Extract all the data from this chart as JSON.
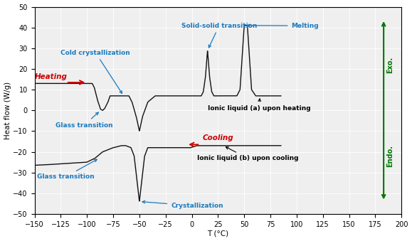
{
  "xlim": [
    -150,
    200
  ],
  "ylim": [
    -50,
    50
  ],
  "xticks": [
    -150,
    -125,
    -100,
    -75,
    -50,
    -25,
    0,
    25,
    50,
    75,
    100,
    125,
    150,
    175,
    200
  ],
  "yticks": [
    -50,
    -40,
    -30,
    -20,
    -10,
    0,
    10,
    20,
    30,
    40,
    50
  ],
  "xlabel": "T (°C)",
  "ylabel": "Heat flow (W/g)",
  "curve_color": "#111111",
  "blue": "#1a7abf",
  "red": "#cc0000",
  "green": "#007700",
  "bg_color": "#efefef",
  "heating_curve_x": [
    -150,
    -95,
    -93,
    -90,
    -87,
    -85,
    -83,
    -80,
    -78,
    -60,
    -57,
    -53,
    -50,
    -47,
    -42,
    -35,
    9,
    11,
    13,
    15,
    17,
    19,
    21,
    43,
    46,
    50,
    53,
    57,
    61,
    64,
    85
  ],
  "heating_curve_y": [
    13,
    13,
    11,
    5,
    0.5,
    0,
    1,
    4,
    7,
    7,
    4,
    -3,
    -10,
    -3,
    4,
    7,
    7,
    9,
    16,
    29,
    16,
    9,
    7,
    7,
    10,
    41,
    41,
    10,
    7,
    7,
    7
  ],
  "cooling_curve_x": [
    85,
    5,
    2,
    -1,
    -42,
    -45,
    -48,
    -50,
    -52,
    -55,
    -58,
    -63,
    -67,
    -75,
    -85,
    -92,
    -100,
    -115,
    -130,
    -150
  ],
  "cooling_curve_y": [
    -17,
    -17,
    -17.5,
    -18,
    -18,
    -22,
    -35,
    -44,
    -35,
    -22,
    -18,
    -17,
    -17,
    -18,
    -20,
    -23,
    -25,
    -25.5,
    -26,
    -26.5
  ]
}
